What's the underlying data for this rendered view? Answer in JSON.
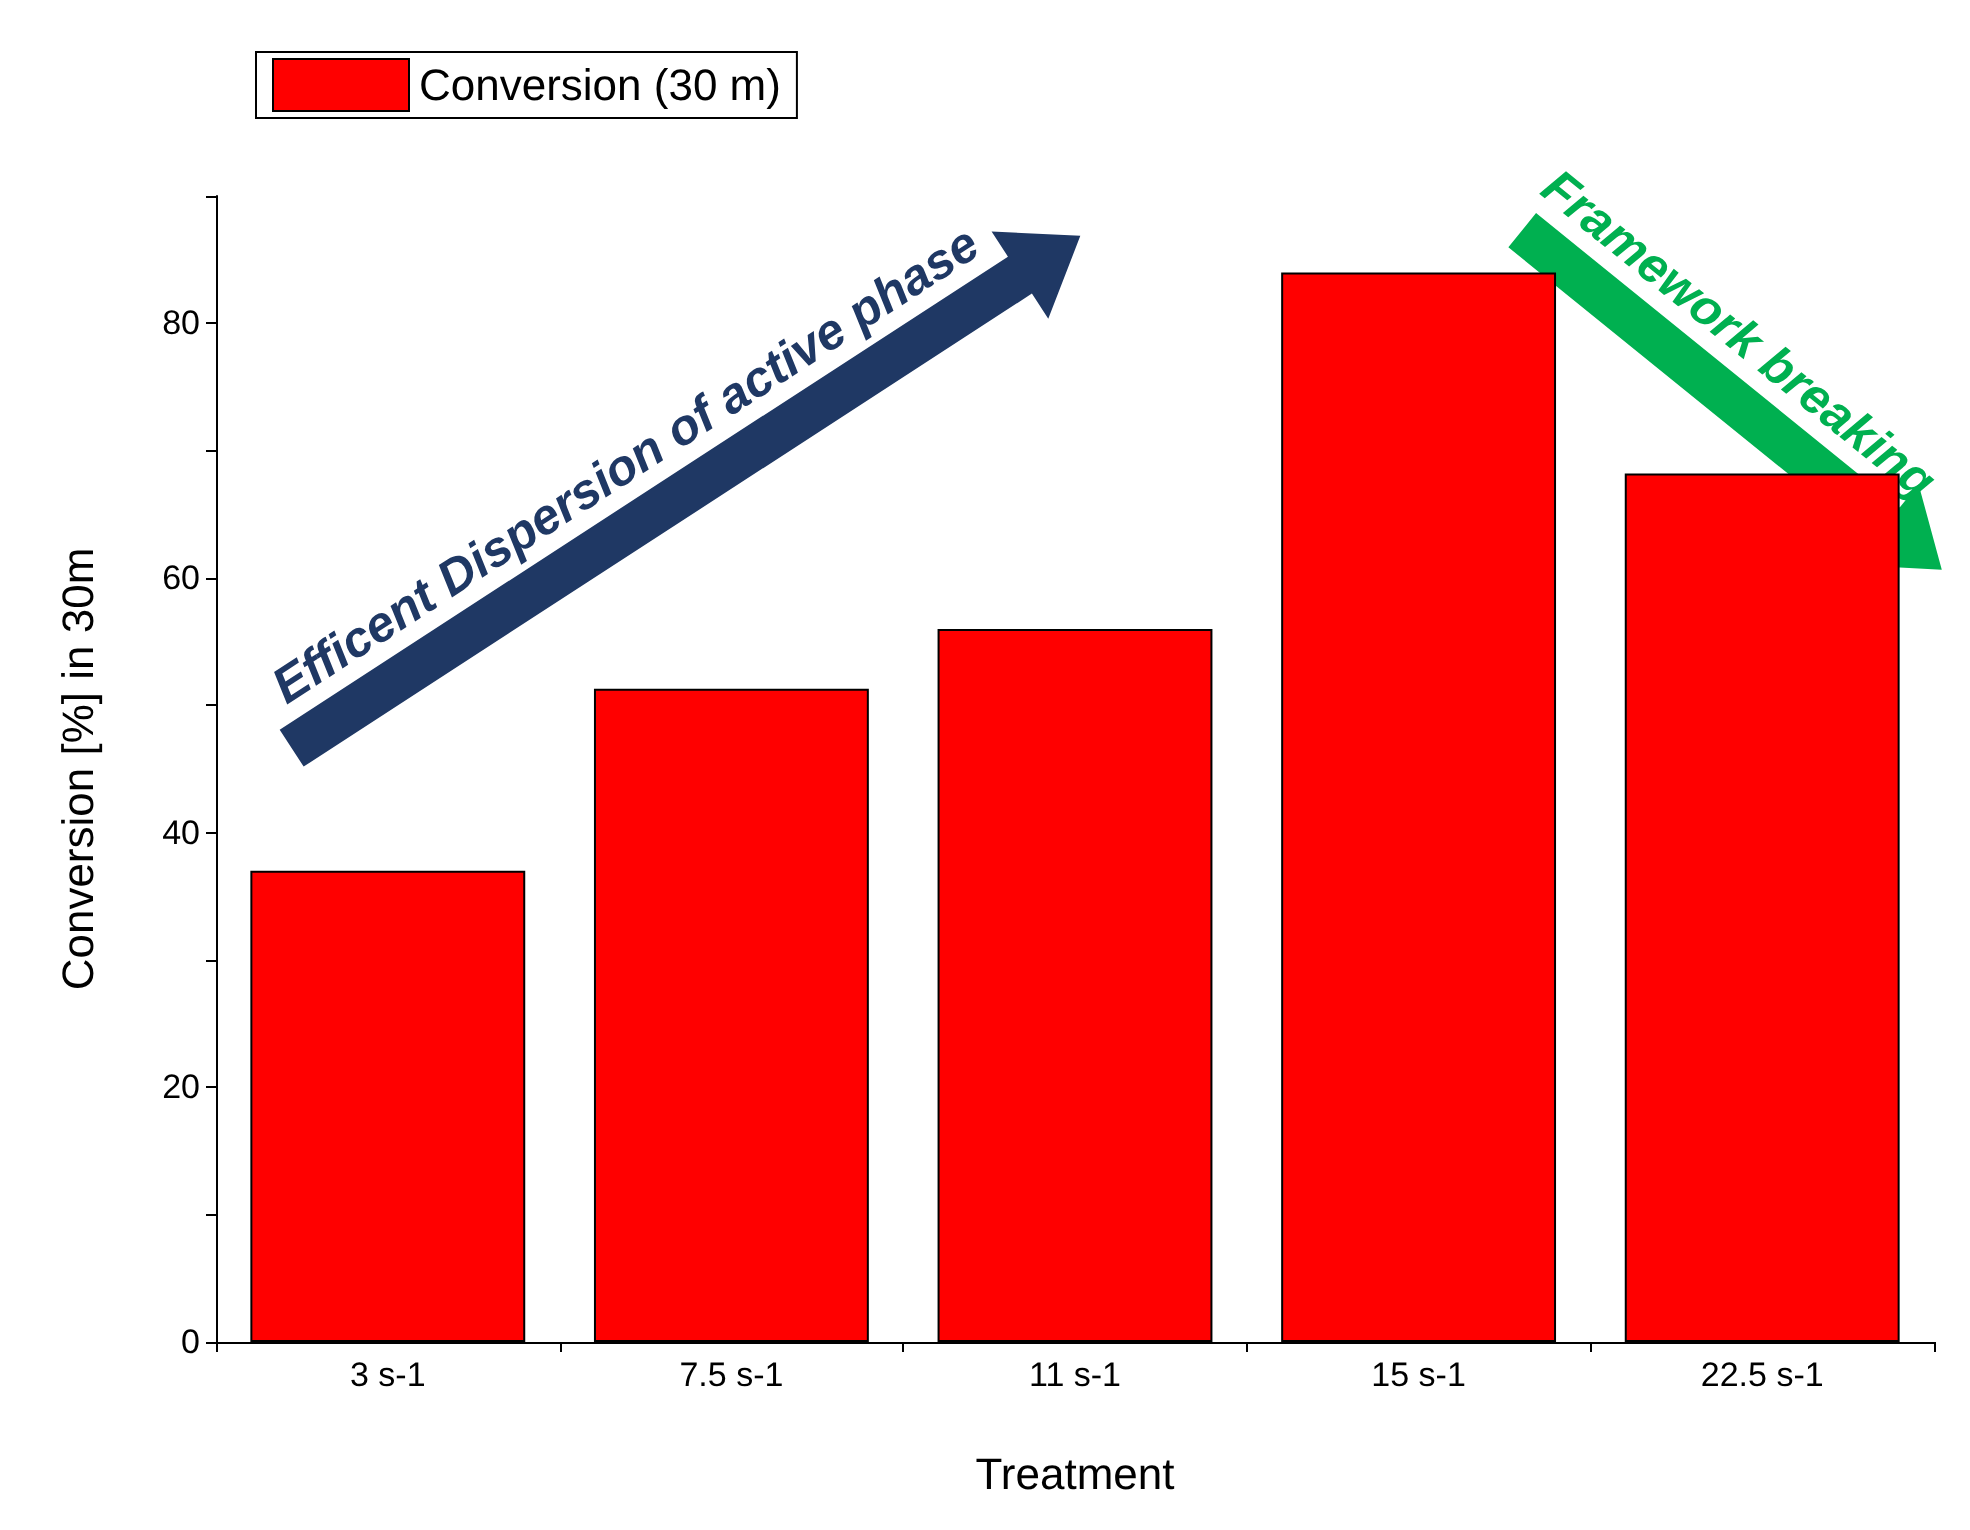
{
  "chart_data": {
    "type": "bar",
    "xlabel": "Treatment",
    "ylabel": "Conversion [%] in 30m",
    "categories": [
      "3 s-1",
      "7.5 s-1",
      "11 s-1",
      "15 s-1",
      "22.5 s-1"
    ],
    "series": [
      {
        "name": "Conversion (30 m)",
        "color": "#ff0000",
        "values": [
          37.0,
          51.3,
          56.0,
          84.0,
          68.2
        ]
      }
    ],
    "ylim": [
      0,
      90
    ],
    "yticks": [
      0,
      {
        "value": 10,
        "label": null
      },
      20,
      {
        "value": 30,
        "label": null
      },
      40,
      {
        "value": 50,
        "label": null
      },
      60,
      {
        "value": 70,
        "label": null
      },
      80,
      {
        "value": 90,
        "label": null
      }
    ],
    "grid": false,
    "legend": "top left",
    "annotations": [
      "Efficent Dispersion of active phase",
      "Framework breaking"
    ]
  }
}
